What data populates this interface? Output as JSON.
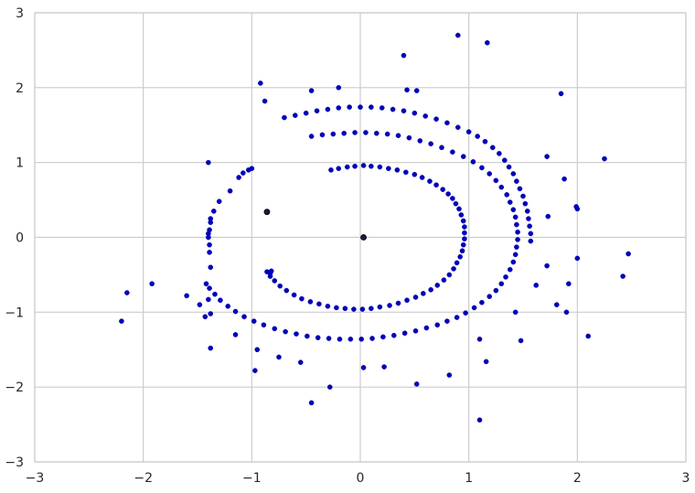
{
  "chart_data": {
    "type": "scatter",
    "title": "",
    "xlabel": "",
    "ylabel": "",
    "xlim": [
      -3,
      3
    ],
    "ylim": [
      -3,
      3
    ],
    "grid": true,
    "x_ticks": [
      -3,
      -2,
      -1,
      0,
      1,
      2,
      3
    ],
    "y_ticks": [
      -3,
      -2,
      -1,
      0,
      1,
      2,
      3
    ],
    "x_tick_labels": [
      "−3",
      "−2",
      "−1",
      "0",
      "1",
      "2",
      "3"
    ],
    "y_tick_labels": [
      "−3",
      "−2",
      "−1",
      "0",
      "1",
      "2",
      "3"
    ],
    "colors": {
      "points": "#0000bb",
      "grid": "#cccccc",
      "background": "#ffffff"
    },
    "series": [
      {
        "points": [
          [
            -0.27,
            0.9
          ],
          [
            -0.2,
            0.92
          ],
          [
            -0.12,
            0.94
          ],
          [
            -0.05,
            0.95
          ],
          [
            0.03,
            0.96
          ],
          [
            0.1,
            0.95
          ],
          [
            0.18,
            0.94
          ],
          [
            0.26,
            0.92
          ],
          [
            0.34,
            0.9
          ],
          [
            0.42,
            0.87
          ],
          [
            0.5,
            0.84
          ],
          [
            0.57,
            0.8
          ],
          [
            0.64,
            0.75
          ],
          [
            0.7,
            0.7
          ],
          [
            0.76,
            0.64
          ],
          [
            0.81,
            0.58
          ],
          [
            0.85,
            0.52
          ],
          [
            0.88,
            0.45
          ],
          [
            0.91,
            0.38
          ],
          [
            0.93,
            0.3
          ],
          [
            0.95,
            0.22
          ],
          [
            0.96,
            0.14
          ],
          [
            0.96,
            0.06
          ],
          [
            0.96,
            -0.02
          ],
          [
            0.95,
            -0.1
          ],
          [
            0.94,
            -0.18
          ],
          [
            0.92,
            -0.26
          ],
          [
            0.89,
            -0.34
          ],
          [
            0.86,
            -0.42
          ],
          [
            0.82,
            -0.5
          ],
          [
            0.77,
            -0.57
          ],
          [
            0.71,
            -0.64
          ],
          [
            0.65,
            -0.7
          ],
          [
            0.58,
            -0.75
          ],
          [
            0.51,
            -0.8
          ],
          [
            0.43,
            -0.84
          ],
          [
            0.35,
            -0.88
          ],
          [
            0.27,
            -0.91
          ],
          [
            0.18,
            -0.93
          ],
          [
            0.1,
            -0.95
          ],
          [
            0.02,
            -0.96
          ],
          [
            -0.06,
            -0.96
          ],
          [
            -0.14,
            -0.95
          ],
          [
            -0.22,
            -0.94
          ],
          [
            -0.3,
            -0.92
          ],
          [
            -0.38,
            -0.89
          ],
          [
            -0.46,
            -0.86
          ],
          [
            -0.54,
            -0.82
          ],
          [
            -0.61,
            -0.77
          ],
          [
            -0.68,
            -0.71
          ],
          [
            -0.74,
            -0.65
          ],
          [
            -0.79,
            -0.58
          ],
          [
            -0.83,
            -0.52
          ],
          [
            -0.86,
            -0.46
          ]
        ]
      },
      {
        "points": [
          [
            -0.7,
            1.6
          ],
          [
            -0.6,
            1.63
          ],
          [
            -0.5,
            1.66
          ],
          [
            -0.4,
            1.69
          ],
          [
            -0.3,
            1.71
          ],
          [
            -0.2,
            1.73
          ],
          [
            -0.1,
            1.74
          ],
          [
            0.0,
            1.74
          ],
          [
            0.1,
            1.74
          ],
          [
            0.2,
            1.73
          ],
          [
            0.3,
            1.71
          ],
          [
            0.4,
            1.69
          ],
          [
            0.5,
            1.66
          ],
          [
            0.6,
            1.62
          ],
          [
            0.7,
            1.58
          ],
          [
            0.8,
            1.53
          ],
          [
            0.9,
            1.47
          ],
          [
            1.0,
            1.41
          ],
          [
            1.08,
            1.35
          ],
          [
            1.15,
            1.28
          ],
          [
            1.22,
            1.2
          ],
          [
            1.28,
            1.12
          ],
          [
            1.33,
            1.03
          ],
          [
            1.37,
            0.94
          ],
          [
            1.41,
            0.85
          ],
          [
            1.44,
            0.75
          ],
          [
            1.47,
            0.65
          ],
          [
            1.5,
            0.55
          ],
          [
            1.52,
            0.45
          ],
          [
            1.54,
            0.35
          ],
          [
            1.55,
            0.25
          ],
          [
            1.56,
            0.15
          ],
          [
            1.57,
            0.05
          ],
          [
            1.57,
            -0.05
          ],
          [
            -0.45,
            1.35
          ],
          [
            -0.35,
            1.37
          ],
          [
            -0.25,
            1.38
          ],
          [
            -0.15,
            1.39
          ],
          [
            -0.05,
            1.4
          ],
          [
            0.05,
            1.4
          ],
          [
            0.15,
            1.39
          ],
          [
            0.25,
            1.38
          ],
          [
            0.35,
            1.36
          ],
          [
            0.45,
            1.33
          ],
          [
            0.55,
            1.29
          ],
          [
            0.65,
            1.25
          ],
          [
            0.75,
            1.2
          ],
          [
            0.85,
            1.14
          ],
          [
            0.95,
            1.08
          ],
          [
            1.04,
            1.01
          ],
          [
            1.12,
            0.93
          ],
          [
            1.19,
            0.85
          ],
          [
            1.25,
            0.76
          ],
          [
            1.3,
            0.67
          ],
          [
            1.35,
            0.57
          ],
          [
            1.38,
            0.47
          ],
          [
            1.41,
            0.37
          ],
          [
            1.43,
            0.27
          ],
          [
            1.44,
            0.17
          ],
          [
            1.45,
            0.07
          ],
          [
            1.45,
            -0.03
          ],
          [
            1.44,
            -0.13
          ],
          [
            1.43,
            -0.23
          ],
          [
            1.41,
            -0.33
          ],
          [
            1.38,
            -0.43
          ],
          [
            1.34,
            -0.53
          ],
          [
            1.3,
            -0.62
          ],
          [
            1.25,
            -0.71
          ],
          [
            1.19,
            -0.79
          ],
          [
            1.12,
            -0.87
          ],
          [
            1.05,
            -0.94
          ],
          [
            0.97,
            -1.01
          ],
          [
            0.89,
            -1.07
          ],
          [
            0.8,
            -1.12
          ],
          [
            0.71,
            -1.17
          ],
          [
            0.61,
            -1.21
          ],
          [
            0.51,
            -1.25
          ],
          [
            0.41,
            -1.28
          ],
          [
            0.31,
            -1.31
          ],
          [
            0.21,
            -1.33
          ],
          [
            0.11,
            -1.35
          ],
          [
            0.01,
            -1.36
          ],
          [
            -0.09,
            -1.36
          ],
          [
            -0.19,
            -1.36
          ],
          [
            -0.29,
            -1.35
          ],
          [
            -0.39,
            -1.34
          ],
          [
            -0.49,
            -1.32
          ],
          [
            -0.59,
            -1.29
          ],
          [
            -0.69,
            -1.26
          ],
          [
            -0.79,
            -1.22
          ],
          [
            -0.89,
            -1.17
          ],
          [
            -0.98,
            -1.12
          ],
          [
            -1.07,
            -1.06
          ],
          [
            -1.15,
            -0.99
          ],
          [
            -1.22,
            -0.92
          ],
          [
            -1.29,
            -0.84
          ],
          [
            -1.34,
            -0.76
          ],
          [
            -1.39,
            -0.68
          ],
          [
            -1.42,
            -0.62
          ],
          [
            -1.38,
            -0.4
          ],
          [
            -1.39,
            -0.2
          ],
          [
            -1.39,
            -0.1
          ],
          [
            -1.4,
            0.0
          ],
          [
            -1.4,
            0.05
          ],
          [
            -1.39,
            0.1
          ],
          [
            -1.38,
            0.2
          ],
          [
            -1.38,
            0.25
          ],
          [
            -1.35,
            0.35
          ],
          [
            -1.3,
            0.48
          ],
          [
            -1.2,
            0.62
          ],
          [
            -1.12,
            0.8
          ],
          [
            -1.08,
            0.86
          ],
          [
            -1.03,
            0.9
          ],
          [
            -1.0,
            0.92
          ]
        ]
      },
      {
        "points": [
          [
            0.9,
            2.7
          ],
          [
            1.17,
            2.6
          ],
          [
            0.4,
            2.43
          ],
          [
            -0.92,
            2.06
          ],
          [
            -0.2,
            2.0
          ],
          [
            -0.45,
            1.96
          ],
          [
            0.43,
            1.97
          ],
          [
            0.52,
            1.96
          ],
          [
            1.85,
            1.92
          ],
          [
            -0.88,
            1.82
          ],
          [
            2.25,
            1.05
          ],
          [
            1.72,
            1.08
          ],
          [
            1.88,
            0.78
          ],
          [
            1.73,
            0.28
          ],
          [
            2.0,
            0.38
          ],
          [
            1.99,
            0.41
          ],
          [
            -1.4,
            1.0
          ],
          [
            -1.4,
            -0.83
          ],
          [
            -1.38,
            -1.02
          ],
          [
            -1.43,
            -1.06
          ],
          [
            -1.6,
            -0.78
          ],
          [
            -1.48,
            -0.9
          ],
          [
            -1.38,
            -1.48
          ],
          [
            -1.15,
            -1.3
          ],
          [
            -0.95,
            -1.5
          ],
          [
            -0.97,
            -1.78
          ],
          [
            -0.75,
            -1.6
          ],
          [
            -0.55,
            -1.67
          ],
          [
            -0.45,
            -2.21
          ],
          [
            -0.28,
            -2.0
          ],
          [
            0.03,
            -1.74
          ],
          [
            0.22,
            -1.73
          ],
          [
            0.52,
            -1.96
          ],
          [
            0.82,
            -1.84
          ],
          [
            1.1,
            -1.36
          ],
          [
            1.16,
            -1.66
          ],
          [
            1.1,
            -2.44
          ],
          [
            1.43,
            -1.0
          ],
          [
            1.48,
            -1.38
          ],
          [
            1.72,
            -0.38
          ],
          [
            1.62,
            -0.64
          ],
          [
            1.81,
            -0.9
          ],
          [
            1.92,
            -0.62
          ],
          [
            2.0,
            -0.28
          ],
          [
            2.1,
            -1.32
          ],
          [
            2.42,
            -0.52
          ],
          [
            2.47,
            -0.22
          ],
          [
            -1.92,
            -0.62
          ],
          [
            -2.15,
            -0.74
          ],
          [
            -2.2,
            -1.12
          ],
          [
            -0.82,
            -0.45
          ],
          [
            -0.83,
            -0.48
          ],
          [
            1.9,
            -1.0
          ]
        ]
      },
      {
        "dark": true,
        "points": [
          [
            -0.86,
            0.34
          ],
          [
            0.03,
            0.0
          ]
        ]
      }
    ]
  }
}
